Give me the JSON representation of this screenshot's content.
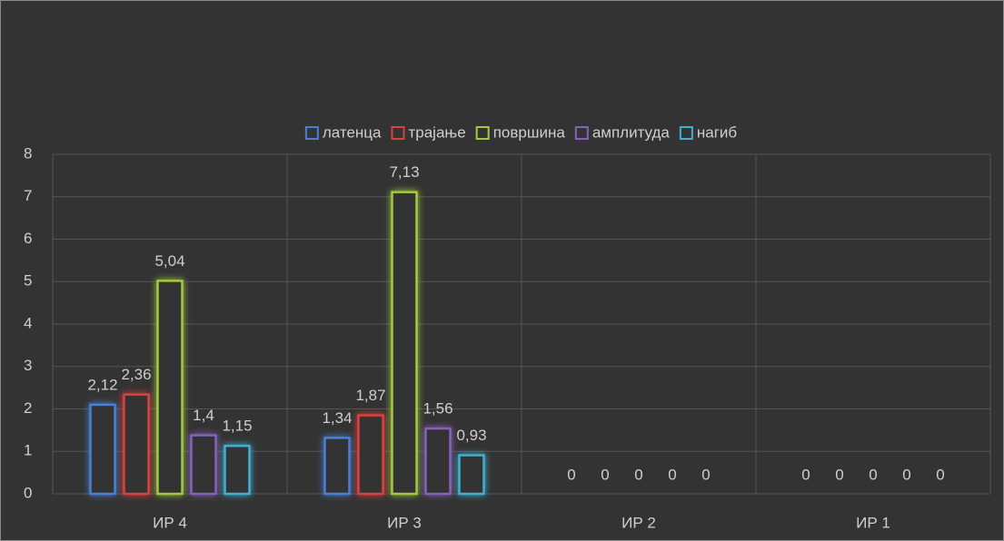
{
  "chart_data": {
    "type": "bar",
    "categories": [
      "ИР 4",
      "ИР 3",
      "ИР 2",
      "ИР 1"
    ],
    "series": [
      {
        "name": "латенца",
        "color": "#4a80d4",
        "values": [
          2.12,
          1.34,
          0,
          0
        ],
        "value_labels": [
          "2,12",
          "1,34",
          "0",
          "0"
        ]
      },
      {
        "name": "трајање",
        "color": "#d9423f",
        "values": [
          2.36,
          1.87,
          0,
          0
        ],
        "value_labels": [
          "2,36",
          "1,87",
          "0",
          "0"
        ]
      },
      {
        "name": "површина",
        "color": "#a3c940",
        "values": [
          5.04,
          7.13,
          0,
          0
        ],
        "value_labels": [
          "5,04",
          "7,13",
          "0",
          "0"
        ]
      },
      {
        "name": "амплитуда",
        "color": "#8562b8",
        "values": [
          1.4,
          1.56,
          0,
          0
        ],
        "value_labels": [
          "1,4",
          "1,56",
          "0",
          "0"
        ]
      },
      {
        "name": "нагиб",
        "color": "#3fb0d0",
        "values": [
          1.15,
          0.93,
          0,
          0
        ],
        "value_labels": [
          "1,15",
          "0,93",
          "0",
          "0"
        ]
      }
    ],
    "ylim": [
      0,
      8
    ],
    "yticks": [
      0,
      1,
      2,
      3,
      4,
      5,
      6,
      7,
      8
    ],
    "grid": true,
    "legend": "top"
  }
}
